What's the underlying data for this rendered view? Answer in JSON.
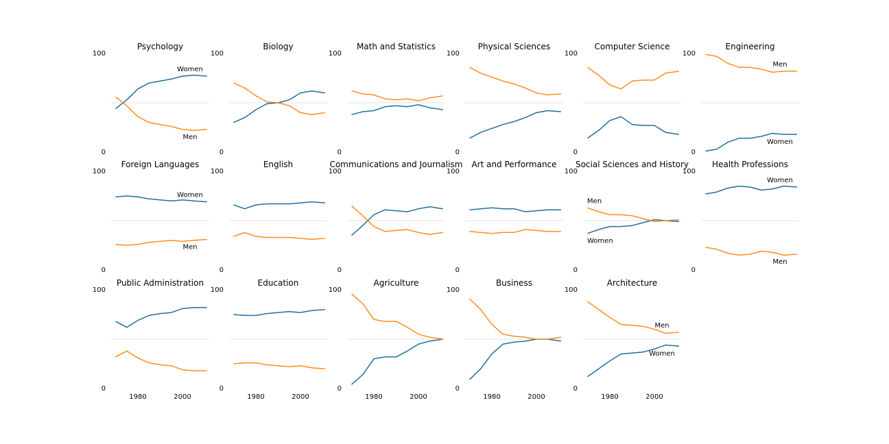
{
  "chart_data": {
    "type": "line",
    "grid": false,
    "ylim": [
      0,
      100
    ],
    "xlim": [
      1968,
      2012
    ],
    "x_ticks": [
      1980,
      2000
    ],
    "y_tick_labels": [
      "0",
      "100"
    ],
    "reference_line": 50,
    "colors": {
      "women": "#1f6e9e",
      "men": "#ff8c1a",
      "reference": "#e6e6e6"
    },
    "years": [
      1970,
      1975,
      1980,
      1985,
      1990,
      1995,
      2000,
      2005,
      2011
    ],
    "panels": [
      {
        "title": "Psychology",
        "women": [
          44,
          53,
          64,
          70,
          72,
          74,
          77,
          78,
          77
        ],
        "men": [
          56,
          47,
          36,
          30,
          28,
          26,
          23,
          22,
          23
        ],
        "labels": [
          {
            "series": "women",
            "text": "Women"
          },
          {
            "series": "men",
            "text": "Men"
          }
        ]
      },
      {
        "title": "Biology",
        "women": [
          30,
          35,
          43,
          49,
          50,
          53,
          60,
          62,
          60
        ],
        "men": [
          70,
          65,
          57,
          51,
          50,
          47,
          40,
          38,
          40
        ],
        "labels": []
      },
      {
        "title": "Math and Statistics",
        "women": [
          38,
          41,
          42,
          46,
          47,
          46,
          48,
          45,
          43
        ],
        "men": [
          62,
          59,
          58,
          54,
          53,
          54,
          52,
          55,
          57
        ],
        "labels": []
      },
      {
        "title": "Physical Sciences",
        "women": [
          14,
          20,
          24,
          28,
          31,
          35,
          40,
          42,
          41
        ],
        "men": [
          86,
          80,
          76,
          72,
          69,
          65,
          60,
          58,
          59
        ],
        "labels": []
      },
      {
        "title": "Computer Science",
        "women": [
          14,
          22,
          32,
          36,
          28,
          27,
          27,
          20,
          18
        ],
        "men": [
          86,
          78,
          68,
          64,
          72,
          73,
          73,
          80,
          82
        ],
        "labels": []
      },
      {
        "title": "Engineering",
        "women": [
          1,
          3,
          10,
          14,
          14,
          16,
          19,
          18,
          18
        ],
        "men": [
          99,
          97,
          90,
          86,
          86,
          84,
          81,
          82,
          82
        ],
        "labels": [
          {
            "series": "men",
            "text": "Men"
          },
          {
            "series": "women",
            "text": "Women"
          }
        ]
      },
      {
        "title": "Foreign Languages",
        "women": [
          74,
          75,
          74,
          72,
          71,
          70,
          71,
          70,
          69
        ],
        "men": [
          26,
          25,
          26,
          28,
          29,
          30,
          29,
          30,
          31
        ],
        "labels": [
          {
            "series": "women",
            "text": "Women"
          },
          {
            "series": "men",
            "text": "Men"
          }
        ]
      },
      {
        "title": "English",
        "women": [
          66,
          62,
          66,
          67,
          67,
          67,
          68,
          69,
          68
        ],
        "men": [
          34,
          38,
          34,
          33,
          33,
          33,
          32,
          31,
          32
        ],
        "labels": []
      },
      {
        "title": "Communications and Journalism",
        "women": [
          35,
          45,
          56,
          61,
          60,
          59,
          62,
          64,
          62
        ],
        "men": [
          65,
          55,
          44,
          39,
          40,
          41,
          38,
          36,
          38
        ],
        "labels": []
      },
      {
        "title": "Art and Performance",
        "women": [
          61,
          62,
          63,
          62,
          62,
          59,
          60,
          61,
          61
        ],
        "men": [
          39,
          38,
          37,
          38,
          38,
          41,
          40,
          39,
          39
        ],
        "labels": []
      },
      {
        "title": "Social Sciences and History",
        "women": [
          37,
          41,
          44,
          44,
          45,
          48,
          51,
          50,
          49
        ],
        "men": [
          63,
          59,
          56,
          56,
          55,
          52,
          49,
          50,
          51
        ],
        "labels": [
          {
            "series": "men",
            "text": "Men"
          },
          {
            "series": "women",
            "text": "Women"
          }
        ]
      },
      {
        "title": "Health Professions",
        "women": [
          77,
          79,
          83,
          85,
          84,
          81,
          82,
          85,
          84
        ],
        "men": [
          23,
          21,
          17,
          15,
          16,
          19,
          18,
          15,
          16
        ],
        "labels": [
          {
            "series": "women",
            "text": "Women"
          },
          {
            "series": "men",
            "text": "Men"
          }
        ]
      },
      {
        "title": "Public Administration",
        "women": [
          68,
          62,
          69,
          74,
          76,
          77,
          81,
          82,
          82
        ],
        "men": [
          32,
          38,
          31,
          26,
          24,
          23,
          19,
          18,
          18
        ],
        "labels": []
      },
      {
        "title": "Education",
        "women": [
          75,
          74,
          74,
          76,
          77,
          78,
          77,
          79,
          80
        ],
        "men": [
          25,
          26,
          26,
          24,
          23,
          22,
          23,
          21,
          20
        ],
        "labels": []
      },
      {
        "title": "Agriculture",
        "women": [
          4,
          14,
          30,
          32,
          32,
          38,
          45,
          48,
          50
        ],
        "men": [
          96,
          86,
          70,
          68,
          68,
          62,
          55,
          52,
          50
        ],
        "labels": []
      },
      {
        "title": "Business",
        "women": [
          9,
          20,
          35,
          45,
          47,
          48,
          50,
          50,
          48
        ],
        "men": [
          91,
          80,
          65,
          55,
          53,
          52,
          50,
          50,
          52
        ],
        "labels": []
      },
      {
        "title": "Architecture",
        "women": [
          12,
          20,
          28,
          35,
          36,
          37,
          40,
          44,
          43
        ],
        "men": [
          88,
          80,
          72,
          65,
          64,
          63,
          60,
          56,
          57
        ],
        "labels": [
          {
            "series": "men",
            "text": "Men"
          },
          {
            "series": "women",
            "text": "Women"
          }
        ]
      }
    ]
  }
}
